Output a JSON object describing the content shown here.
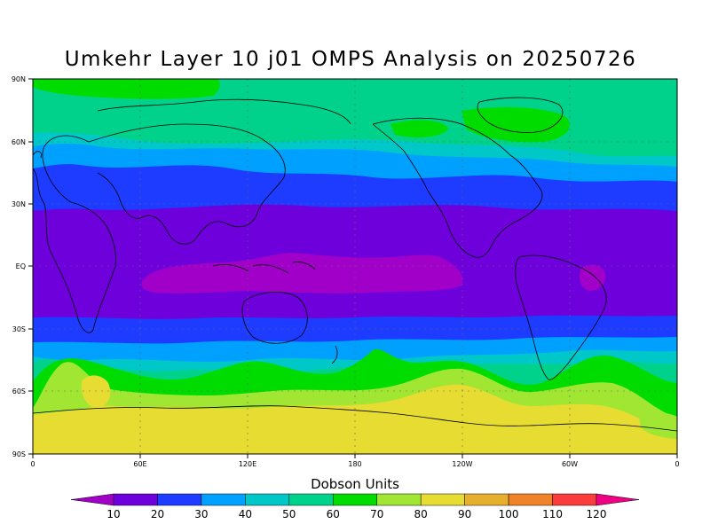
{
  "title": "Umkehr Layer 10 j01 OMPS Analysis on 20250726",
  "colorbar": {
    "title": "Dobson Units",
    "labels": [
      "10",
      "20",
      "30",
      "40",
      "50",
      "60",
      "70",
      "80",
      "90",
      "100",
      "110",
      "120"
    ],
    "colors": [
      "#a000c8",
      "#6e00dc",
      "#1e3cff",
      "#00a0ff",
      "#00c8c8",
      "#00d28c",
      "#00dc00",
      "#a0e632",
      "#e6dc32",
      "#e6af2d",
      "#f08228",
      "#fa3c3c",
      "#f00082"
    ]
  },
  "axes": {
    "lat_labels": [
      "90N",
      "60N",
      "30N",
      "EQ",
      "30S",
      "60S",
      "90S"
    ],
    "lon_labels": [
      "0",
      "60E",
      "120E",
      "180",
      "120W",
      "60W",
      "0"
    ]
  },
  "chart_data": {
    "type": "heatmap",
    "title": "Umkehr Layer 10 j01 OMPS Analysis on 20250726",
    "variable_units": "Dobson Units",
    "xlim": [
      0,
      360
    ],
    "ylim": [
      -90,
      90
    ],
    "zones_description_bands": [
      {
        "lat_from": 90,
        "lat_to": 78,
        "value_band": "50-60"
      },
      {
        "lat_from": 78,
        "lat_to": 58,
        "value_band": "50-60"
      },
      {
        "lat_from": 58,
        "lat_to": 48,
        "value_band": "40-50"
      },
      {
        "lat_from": 48,
        "lat_to": 35,
        "value_band": "20-30"
      },
      {
        "lat_from": 35,
        "lat_to": 28,
        "value_band": "20-30"
      },
      {
        "lat_from": 28,
        "lat_to": -20,
        "value_band": "10-20"
      },
      {
        "lat_from": -20,
        "lat_to": -30,
        "value_band": "20-30"
      },
      {
        "lat_from": -30,
        "lat_to": -40,
        "value_band": "30-40"
      },
      {
        "lat_from": -40,
        "lat_to": -48,
        "value_band": "40-50"
      },
      {
        "lat_from": -48,
        "lat_to": -55,
        "value_band": "50-60"
      },
      {
        "lat_from": -55,
        "lat_to": -62,
        "value_band": "60-70"
      },
      {
        "lat_from": -62,
        "lat_to": -70,
        "value_band": "70-80"
      },
      {
        "lat_from": -70,
        "lat_to": -90,
        "value_band": "80-90"
      }
    ],
    "grid": true
  }
}
